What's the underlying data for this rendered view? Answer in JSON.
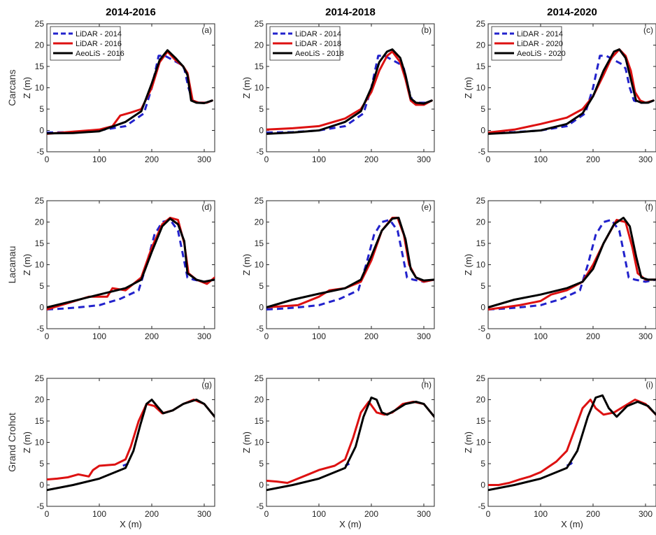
{
  "chart_data": {
    "type": "line",
    "columns": [
      "2014-2016",
      "2014-2018",
      "2014-2020"
    ],
    "rows": [
      "Carcans",
      "Lacanau",
      "Grand Crohot"
    ],
    "xlabel": "X (m)",
    "ylabel": "Z (m)",
    "xlim": [
      0,
      320
    ],
    "ylim": [
      -5,
      25
    ],
    "xticks": [
      0,
      100,
      200,
      300
    ],
    "yticks": [
      -5,
      0,
      5,
      10,
      15,
      20,
      25
    ],
    "colors": {
      "lidar2014": "#2222cc",
      "lidarNew": "#dd1111",
      "aeolis": "#000000"
    },
    "legends": [
      [
        "LiDAR - 2014",
        "LiDAR - 2016",
        "AeoLiS - 2016"
      ],
      [
        "LiDAR - 2014",
        "LiDAR - 2018",
        "AeoLiS - 2018"
      ],
      [
        "LiDAR - 2014",
        "LiDAR - 2020",
        "AeoLiS - 2020"
      ]
    ],
    "panels": [
      {
        "label": "(a)",
        "row": 0,
        "col": 0,
        "series": [
          {
            "key": "lidar2014",
            "x": [
              0,
              50,
              100,
              150,
              185,
              200,
              213,
              225,
              240,
              255,
              262,
              270,
              278,
              290,
              305,
              315
            ],
            "y": [
              -0.5,
              -0.4,
              0,
              1,
              4,
              10,
              17.5,
              17.5,
              16.5,
              15.5,
              14.5,
              10,
              7,
              6.5,
              6.5,
              7
            ]
          },
          {
            "key": "lidarNew",
            "x": [
              0,
              50,
              100,
              125,
              140,
              160,
              180,
              200,
              215,
              230,
              245,
              260,
              268,
              278,
              290,
              305,
              315
            ],
            "y": [
              -0.8,
              -0.3,
              0.2,
              1,
              3.5,
              4.2,
              5,
              10,
              16,
              18.5,
              16.5,
              15,
              13.5,
              7,
              6.5,
              6.5,
              7
            ]
          },
          {
            "key": "aeolis",
            "x": [
              0,
              50,
              100,
              150,
              180,
              200,
              215,
              230,
              245,
              260,
              268,
              275,
              285,
              300,
              315
            ],
            "y": [
              -0.7,
              -0.6,
              -0.2,
              2,
              4.5,
              11,
              16.5,
              18.8,
              17,
              15,
              13,
              7,
              6.5,
              6.4,
              7
            ]
          }
        ]
      },
      {
        "label": "(b)",
        "row": 0,
        "col": 1,
        "series": [
          {
            "key": "lidar2014",
            "x": [
              0,
              50,
              100,
              150,
              185,
              200,
              213,
              225,
              240,
              255,
              262,
              270,
              278,
              290,
              305,
              315
            ],
            "y": [
              -0.5,
              -0.4,
              0,
              1,
              4,
              10,
              17.5,
              17.5,
              16.5,
              15.5,
              14.5,
              10,
              7,
              6.5,
              6.5,
              7
            ]
          },
          {
            "key": "lidarNew",
            "x": [
              0,
              50,
              100,
              150,
              180,
              200,
              215,
              230,
              240,
              255,
              265,
              275,
              285,
              300,
              315
            ],
            "y": [
              0.2,
              0.5,
              1,
              2.8,
              5,
              9,
              14,
              17.5,
              18.5,
              16,
              12,
              7,
              6,
              6,
              7
            ]
          },
          {
            "key": "aeolis",
            "x": [
              0,
              50,
              100,
              150,
              180,
              200,
              215,
              230,
              240,
              255,
              265,
              275,
              285,
              300,
              315
            ],
            "y": [
              -0.8,
              -0.5,
              0,
              2,
              4.5,
              10,
              16,
              18.5,
              19,
              17,
              13,
              7.5,
              6.5,
              6.3,
              7
            ]
          }
        ]
      },
      {
        "label": "(c)",
        "row": 0,
        "col": 2,
        "series": [
          {
            "key": "lidar2014",
            "x": [
              0,
              50,
              100,
              150,
              185,
              200,
              213,
              225,
              240,
              255,
              262,
              270,
              278,
              290,
              305,
              315
            ],
            "y": [
              -0.5,
              -0.4,
              0,
              1,
              4,
              10,
              17.5,
              17.5,
              16.5,
              15.5,
              14.5,
              10,
              7,
              6.5,
              6.5,
              7
            ]
          },
          {
            "key": "lidarNew",
            "x": [
              0,
              50,
              100,
              150,
              180,
              200,
              220,
              235,
              250,
              262,
              272,
              280,
              290,
              300,
              315
            ],
            "y": [
              -0.5,
              0.2,
              1.5,
              3,
              5,
              8,
              13,
              17,
              19,
              17.5,
              14,
              9,
              7,
              6.5,
              7
            ]
          },
          {
            "key": "aeolis",
            "x": [
              0,
              50,
              100,
              150,
              180,
              200,
              220,
              240,
              250,
              262,
              272,
              282,
              292,
              305,
              315
            ],
            "y": [
              -0.8,
              -0.5,
              0,
              1.5,
              4,
              8,
              14,
              18.5,
              19,
              17,
              12,
              7,
              6.5,
              6.5,
              7
            ]
          }
        ]
      },
      {
        "label": "(d)",
        "row": 1,
        "col": 0,
        "series": [
          {
            "key": "lidar2014",
            "x": [
              0,
              30,
              60,
              100,
              140,
              175,
              190,
              205,
              220,
              235,
              250,
              260,
              268,
              280,
              300,
              320
            ],
            "y": [
              -0.5,
              -0.3,
              0,
              0.5,
              2,
              4,
              10,
              17,
              20,
              20.5,
              18,
              12,
              7,
              6.5,
              6,
              6.5
            ]
          },
          {
            "key": "lidarNew",
            "x": [
              0,
              40,
              80,
              115,
              125,
              150,
              180,
              200,
              220,
              235,
              250,
              262,
              270,
              285,
              305,
              320
            ],
            "y": [
              -0.5,
              1,
              2.5,
              2.5,
              4.5,
              4,
              7,
              14,
              19.5,
              21,
              20.5,
              15,
              8,
              6.5,
              5.5,
              7
            ]
          },
          {
            "key": "aeolis",
            "x": [
              0,
              50,
              100,
              150,
              180,
              200,
              220,
              235,
              250,
              262,
              268,
              285,
              300,
              320
            ],
            "y": [
              0,
              1.5,
              3,
              4.5,
              6.5,
              13,
              19,
              20.8,
              19.5,
              15.5,
              8,
              6.5,
              6,
              6.5
            ]
          }
        ]
      },
      {
        "label": "(e)",
        "row": 1,
        "col": 1,
        "series": [
          {
            "key": "lidar2014",
            "x": [
              0,
              30,
              60,
              100,
              140,
              175,
              190,
              205,
              220,
              235,
              250,
              260,
              268,
              280,
              300,
              320
            ],
            "y": [
              -0.5,
              -0.3,
              0,
              0.5,
              2,
              4,
              10,
              17,
              20,
              20.5,
              18,
              12,
              7,
              6.5,
              6,
              6.5
            ]
          },
          {
            "key": "lidarNew",
            "x": [
              0,
              60,
              100,
              120,
              150,
              180,
              200,
              220,
              240,
              250,
              262,
              272,
              285,
              300,
              320
            ],
            "y": [
              0,
              0.5,
              2.5,
              4,
              4.5,
              6,
              11,
              18,
              21,
              21,
              17,
              10,
              7,
              6,
              6.5
            ]
          },
          {
            "key": "aeolis",
            "x": [
              0,
              50,
              100,
              150,
              180,
              200,
              220,
              240,
              252,
              265,
              275,
              285,
              300,
              320
            ],
            "y": [
              0,
              1.8,
              3.2,
              4.5,
              6.5,
              12,
              18,
              20.8,
              21,
              16,
              9,
              7,
              6.3,
              6.5
            ]
          }
        ]
      },
      {
        "label": "(f)",
        "row": 1,
        "col": 2,
        "series": [
          {
            "key": "lidar2014",
            "x": [
              0,
              30,
              60,
              100,
              140,
              175,
              190,
              205,
              220,
              235,
              250,
              260,
              268,
              280,
              300,
              320
            ],
            "y": [
              -0.5,
              -0.3,
              0,
              0.5,
              2,
              4,
              10,
              17,
              20,
              20.5,
              18,
              12,
              7,
              6.5,
              6,
              6.5
            ]
          },
          {
            "key": "lidarNew",
            "x": [
              0,
              60,
              100,
              120,
              150,
              180,
              200,
              220,
              245,
              262,
              275,
              285,
              300,
              320
            ],
            "y": [
              -0.5,
              0.5,
              1.5,
              3,
              4,
              6,
              10,
              15,
              20.5,
              20,
              14,
              8,
              6.5,
              6.5
            ]
          },
          {
            "key": "aeolis",
            "x": [
              0,
              50,
              100,
              150,
              180,
              200,
              220,
              240,
              258,
              270,
              282,
              292,
              305,
              320
            ],
            "y": [
              0,
              1.8,
              3,
              4.5,
              6,
              9,
              15,
              19.5,
              21,
              19,
              12,
              7,
              6.5,
              6.5
            ]
          }
        ]
      },
      {
        "label": "(g)",
        "row": 2,
        "col": 0,
        "series": [
          {
            "key": "lidar2014",
            "x": [
              145,
              155
            ],
            "y": [
              4.5,
              5
            ]
          },
          {
            "key": "lidarNew",
            "x": [
              0,
              20,
              40,
              60,
              80,
              88,
              100,
              130,
              150,
              160,
              175,
              190,
              205,
              220,
              240,
              260,
              280,
              300,
              320
            ],
            "y": [
              1.3,
              1.5,
              1.8,
              2.5,
              2,
              3.5,
              4.5,
              4.8,
              6,
              9,
              15,
              19,
              18.5,
              16.8,
              17.5,
              19,
              20,
              19,
              16
            ]
          },
          {
            "key": "aeolis",
            "x": [
              0,
              50,
              100,
              150,
              165,
              178,
              190,
              200,
              210,
              222,
              240,
              260,
              285,
              300,
              320
            ],
            "y": [
              -1.2,
              0,
              1.5,
              4,
              8,
              14,
              19,
              20,
              18.5,
              16.8,
              17.5,
              19,
              20,
              19,
              16
            ]
          }
        ]
      },
      {
        "label": "(h)",
        "row": 2,
        "col": 1,
        "series": [
          {
            "key": "lidar2014",
            "x": [
              150,
              158
            ],
            "y": [
              4.5,
              5
            ]
          },
          {
            "key": "lidarNew",
            "x": [
              0,
              20,
              40,
              60,
              80,
              100,
              130,
              150,
              165,
              180,
              195,
              210,
              225,
              240,
              260,
              280,
              300,
              320
            ],
            "y": [
              1,
              0.8,
              0.5,
              1.5,
              2.5,
              3.5,
              4.5,
              6,
              11,
              17,
              19.5,
              17,
              16.5,
              17,
              19,
              19.5,
              19,
              16
            ]
          },
          {
            "key": "aeolis",
            "x": [
              0,
              50,
              100,
              150,
              170,
              185,
              200,
              210,
              220,
              230,
              245,
              265,
              285,
              300,
              320
            ],
            "y": [
              -1.2,
              0,
              1.5,
              4,
              9,
              16,
              20.5,
              20,
              17,
              16.5,
              17.5,
              19,
              19.5,
              19,
              16
            ]
          }
        ]
      },
      {
        "label": "(i)",
        "row": 2,
        "col": 2,
        "series": [
          {
            "key": "lidar2014",
            "x": [
              150,
              158,
              165
            ],
            "y": [
              4.5,
              5,
              6
            ]
          },
          {
            "key": "lidarNew",
            "x": [
              0,
              20,
              40,
              60,
              80,
              100,
              130,
              150,
              165,
              180,
              195,
              205,
              220,
              240,
              260,
              280,
              300,
              320
            ],
            "y": [
              0,
              0,
              0.5,
              1.3,
              2,
              3,
              5.5,
              8,
              13,
              18,
              20,
              18,
              16.5,
              17,
              18.5,
              20,
              19,
              16.5
            ]
          },
          {
            "key": "aeolis",
            "x": [
              0,
              50,
              100,
              150,
              170,
              190,
              205,
              218,
              230,
              245,
              265,
              285,
              305,
              320
            ],
            "y": [
              -1.2,
              0,
              1.5,
              4,
              8,
              16,
              20.5,
              21,
              18,
              16,
              18.5,
              19.5,
              18.5,
              16.5
            ]
          }
        ]
      }
    ]
  }
}
